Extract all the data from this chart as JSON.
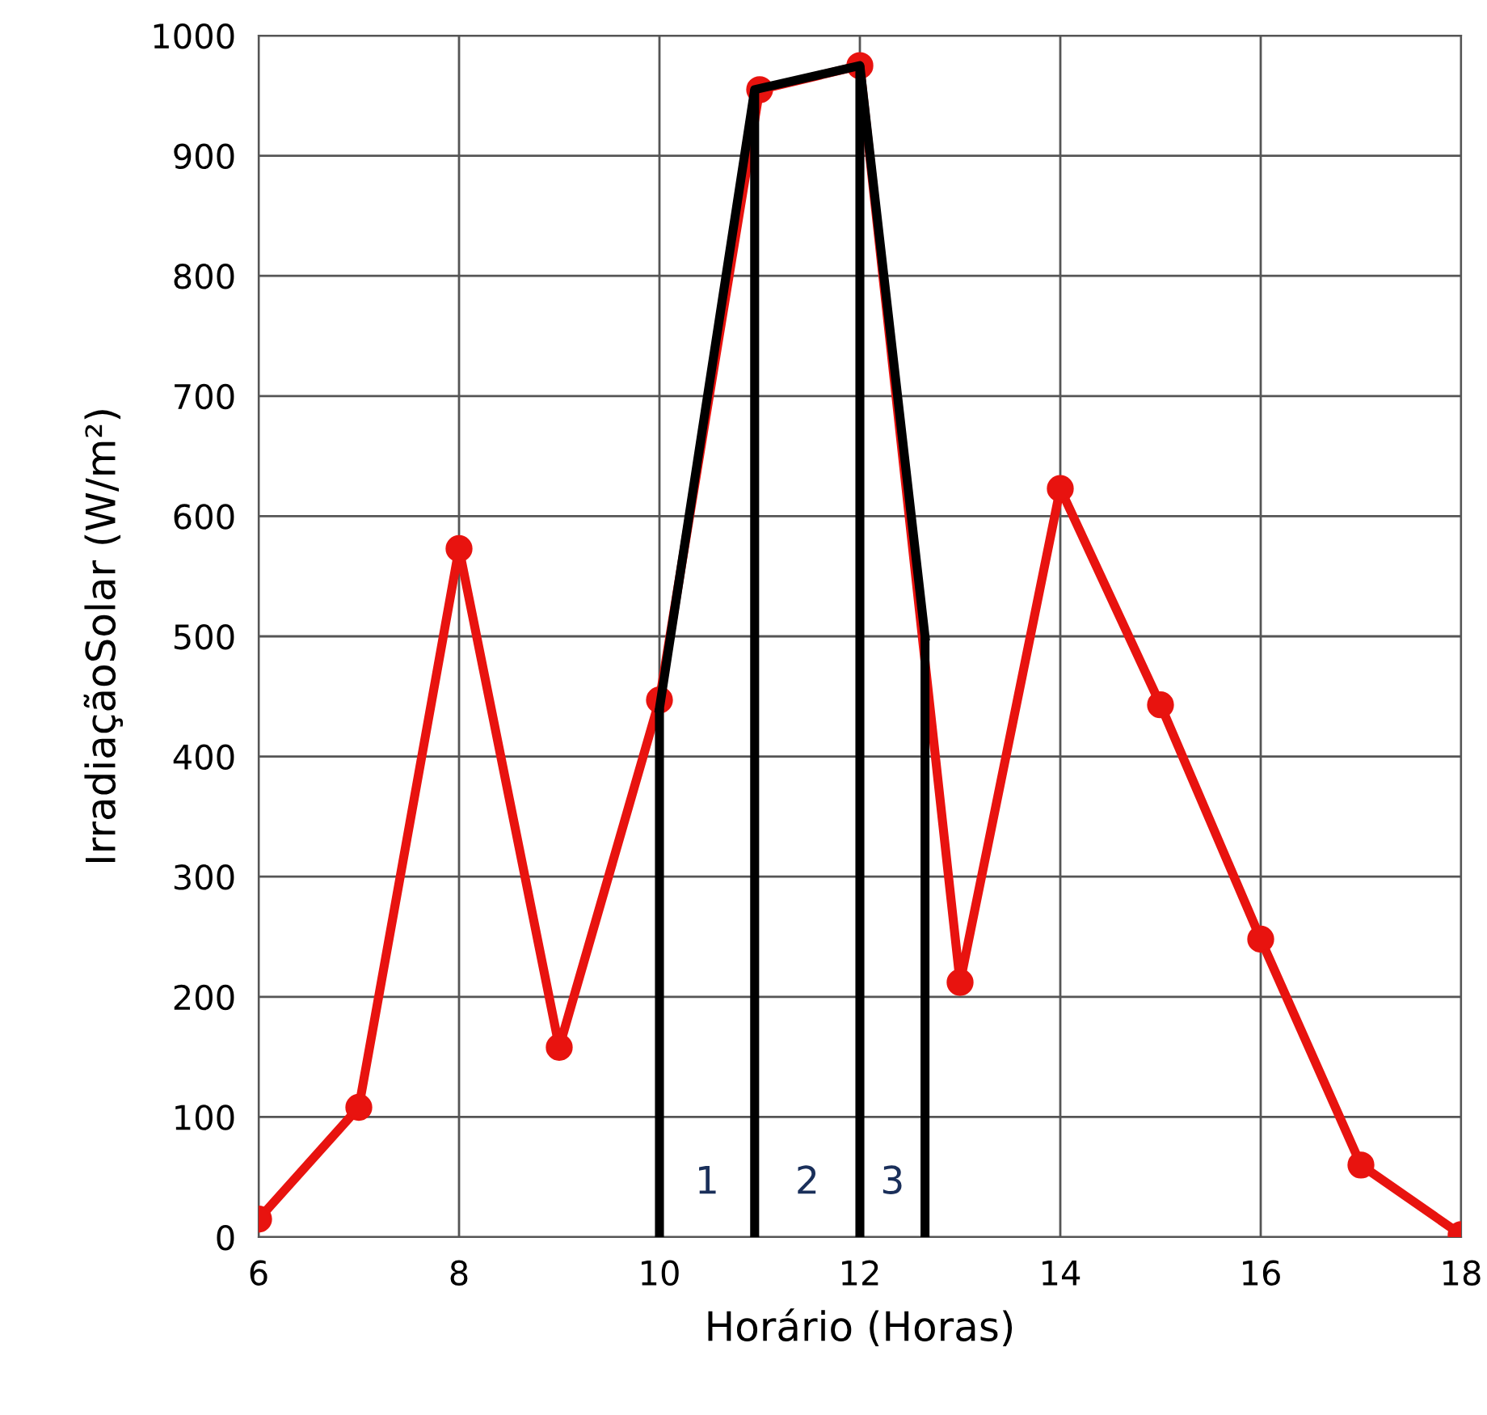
{
  "chart_data": {
    "type": "line",
    "xlabel": "Horário (Horas)",
    "ylabel": "IrradiaçãoSolar (W/m²)",
    "xlim": [
      6,
      18
    ],
    "xticks": [
      6,
      8,
      10,
      12,
      14,
      16,
      18
    ],
    "ylim": [
      0,
      1000
    ],
    "yticks": [
      0,
      100,
      200,
      300,
      400,
      500,
      600,
      700,
      800,
      900,
      1000
    ],
    "grid": true,
    "series": [
      {
        "color": "#e8130f",
        "marker": "circle",
        "x": [
          6,
          7,
          8,
          9,
          10,
          11,
          12,
          13,
          14,
          15,
          16,
          17,
          18
        ],
        "values": [
          15,
          108,
          573,
          158,
          447,
          955,
          975,
          212,
          623,
          443,
          248,
          60,
          2
        ]
      },
      {
        "color": "#000000",
        "marker": "none",
        "x": [
          10,
          10.95,
          12,
          12.65
        ],
        "values": [
          440,
          955,
          975,
          500
        ],
        "errors": [
          [
            0,
            440
          ],
          [
            0,
            955
          ],
          [
            0,
            975
          ],
          [
            0,
            500
          ]
        ]
      }
    ],
    "annotations": [
      "1",
      "2",
      "3"
    ]
  }
}
